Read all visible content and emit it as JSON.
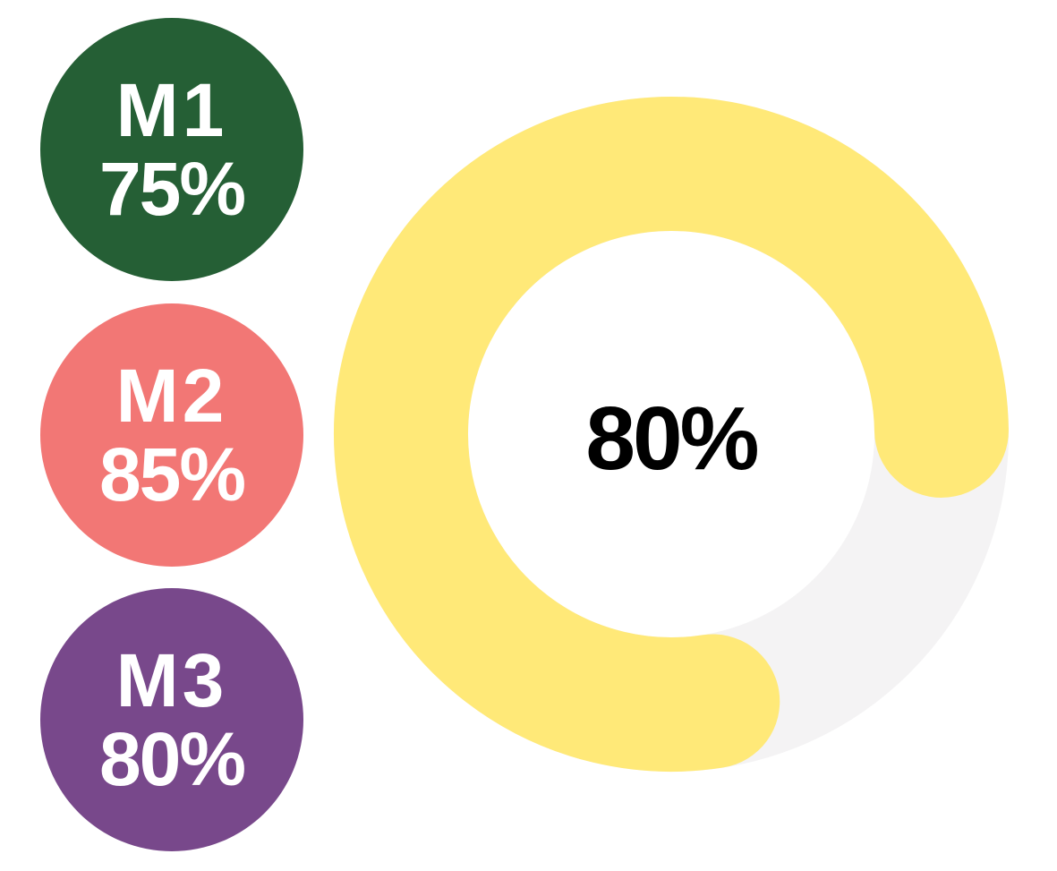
{
  "chart_data": {
    "type": "donut",
    "metrics": [
      {
        "label": "M1",
        "value": 75,
        "display": "75%",
        "color": "#255f35"
      },
      {
        "label": "M2",
        "value": 85,
        "display": "85%",
        "color": "#f27775"
      },
      {
        "label": "M3",
        "value": 80,
        "display": "80%",
        "color": "#78488b"
      }
    ],
    "donut": {
      "value": 80,
      "display": "80%",
      "max": 100,
      "fill_color": "#ffe978",
      "track_color": "#f4f3f4"
    }
  }
}
